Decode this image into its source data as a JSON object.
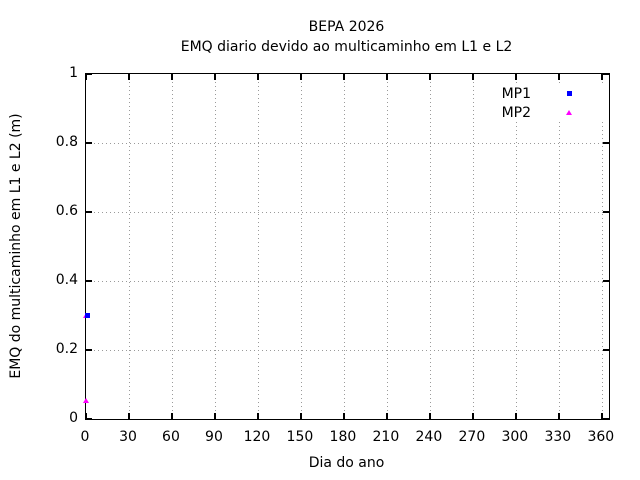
{
  "chart_data": {
    "type": "scatter",
    "title": "BEPA 2026",
    "subtitle": "EMQ diario devido ao multicaminho em L1 e L2",
    "xlabel": "Dia do ano",
    "ylabel": "EMQ do multicaminho em L1 e L2 (m)",
    "xlim": [
      0,
      365
    ],
    "ylim": [
      0,
      1
    ],
    "xticks": [
      0,
      30,
      60,
      90,
      120,
      150,
      180,
      210,
      240,
      270,
      300,
      330,
      360
    ],
    "yticks": [
      {
        "value": 0,
        "label": "0"
      },
      {
        "value": 0.2,
        "label": "0.2"
      },
      {
        "value": 0.4,
        "label": "0.4"
      },
      {
        "value": 0.6,
        "label": "0.6"
      },
      {
        "value": 0.8,
        "label": "0.8"
      },
      {
        "value": 1,
        "label": "1"
      }
    ],
    "grid": {
      "style": "dotted",
      "color": "#9a9a9a"
    },
    "legend_position": "top-right",
    "series": [
      {
        "name": "MP1",
        "color": "#0000ff",
        "marker": "square",
        "points": [
          {
            "x": 1,
            "y": 0.3
          }
        ]
      },
      {
        "name": "MP2",
        "color": "#ff00ff",
        "marker": "triangle",
        "points": [
          {
            "x": 0,
            "y": 0.3
          },
          {
            "x": 0,
            "y": 0.055
          }
        ]
      }
    ],
    "frame": {
      "background": "#ffffff",
      "border_color": "#000000"
    }
  }
}
